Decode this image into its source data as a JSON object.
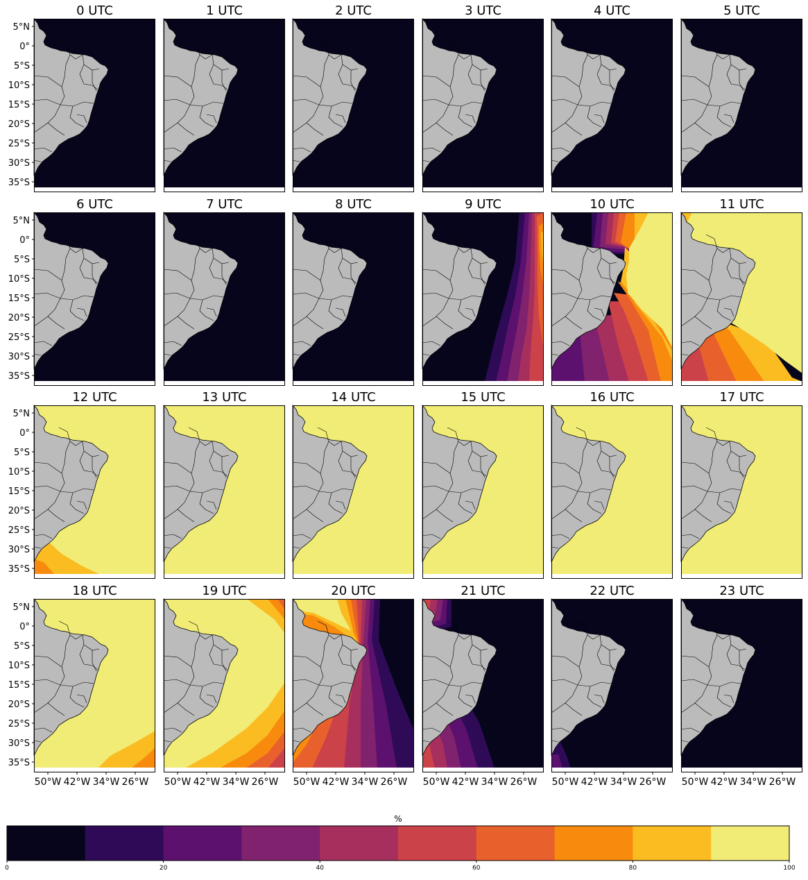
{
  "panels": [
    {
      "title": "0 UTC",
      "field": "dark"
    },
    {
      "title": "1 UTC",
      "field": "dark"
    },
    {
      "title": "2 UTC",
      "field": "dark"
    },
    {
      "title": "3 UTC",
      "field": "dark"
    },
    {
      "title": "4 UTC",
      "field": "dark"
    },
    {
      "title": "5 UTC",
      "field": "dark"
    },
    {
      "title": "6 UTC",
      "field": "dark"
    },
    {
      "title": "7 UTC",
      "field": "dark"
    },
    {
      "title": "8 UTC",
      "field": "dark"
    },
    {
      "title": "9 UTC",
      "field": "dawn-east"
    },
    {
      "title": "10 UTC",
      "field": "dawn-mid"
    },
    {
      "title": "11 UTC",
      "field": "dawn-late"
    },
    {
      "title": "12 UTC",
      "field": "bright-sw"
    },
    {
      "title": "13 UTC",
      "field": "bright"
    },
    {
      "title": "14 UTC",
      "field": "bright"
    },
    {
      "title": "15 UTC",
      "field": "bright"
    },
    {
      "title": "16 UTC",
      "field": "bright"
    },
    {
      "title": "17 UTC",
      "field": "bright"
    },
    {
      "title": "18 UTC",
      "field": "bright-se"
    },
    {
      "title": "19 UTC",
      "field": "dusk-early"
    },
    {
      "title": "20 UTC",
      "field": "dusk-mid"
    },
    {
      "title": "21 UTC",
      "field": "dusk-late"
    },
    {
      "title": "22 UTC",
      "field": "dark-sw"
    },
    {
      "title": "23 UTC",
      "field": "dark"
    }
  ],
  "lat_ticks": [
    "5°N",
    "0°",
    "5°S",
    "10°S",
    "15°S",
    "20°S",
    "25°S",
    "30°S",
    "35°S"
  ],
  "lon_ticks": [
    "50°W",
    "42°W",
    "34°W",
    "26°W"
  ],
  "colorbar": {
    "label": "%",
    "ticks": [
      "0",
      "20",
      "40",
      "60",
      "80",
      "100"
    ],
    "levels": [
      0,
      10,
      20,
      30,
      40,
      50,
      60,
      70,
      80,
      90,
      100
    ],
    "colors": [
      "#07051c",
      "#2f0b57",
      "#5c116e",
      "#80226e",
      "#a62f5e",
      "#cc4249",
      "#e8612d",
      "#f88b0e",
      "#fbbc22",
      "#f0ec76"
    ]
  },
  "land_color": "#bbbbbb",
  "border_color": "#000000"
}
